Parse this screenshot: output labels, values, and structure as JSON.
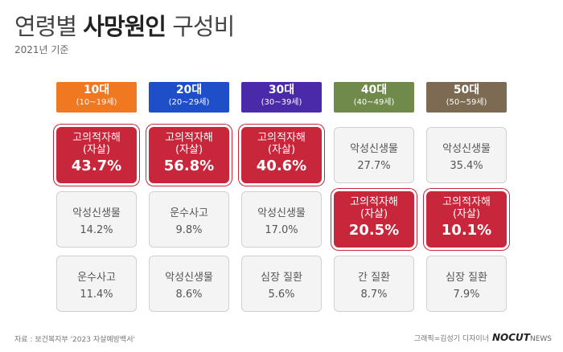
{
  "title_prefix": "연령별 ",
  "title_bold": "사망원인",
  "title_suffix": " 구성비",
  "subtitle": "2021년 기준",
  "source": "자료 : 보건복지부 '2023 자살예방백서'",
  "credit": "그래픽=김성기 디자이너",
  "logo": "NOCUT",
  "logo_suffix": "NEWS",
  "chart_data": {
    "type": "table",
    "columns": [
      {
        "age": "10대",
        "range": "(10~19세)",
        "color": "#f07820",
        "causes": [
          {
            "name": "고의적자해",
            "sub": "(자살)",
            "pct": "43.7%",
            "value": 43.7,
            "highlight": true
          },
          {
            "name": "악성신생물",
            "pct": "14.2%",
            "value": 14.2,
            "highlight": false
          },
          {
            "name": "운수사고",
            "pct": "11.4%",
            "value": 11.4,
            "highlight": false
          }
        ]
      },
      {
        "age": "20대",
        "range": "(20~29세)",
        "color": "#1f4fc8",
        "causes": [
          {
            "name": "고의적자해",
            "sub": "(자살)",
            "pct": "56.8%",
            "value": 56.8,
            "highlight": true
          },
          {
            "name": "운수사고",
            "pct": "9.8%",
            "value": 9.8,
            "highlight": false
          },
          {
            "name": "악성신생물",
            "pct": "8.6%",
            "value": 8.6,
            "highlight": false
          }
        ]
      },
      {
        "age": "30대",
        "range": "(30~39세)",
        "color": "#4a2aa8",
        "causes": [
          {
            "name": "고의적자해",
            "sub": "(자살)",
            "pct": "40.6%",
            "value": 40.6,
            "highlight": true
          },
          {
            "name": "악성신생물",
            "pct": "17.0%",
            "value": 17.0,
            "highlight": false
          },
          {
            "name": "심장 질환",
            "pct": "5.6%",
            "value": 5.6,
            "highlight": false
          }
        ]
      },
      {
        "age": "40대",
        "range": "(40~49세)",
        "color": "#6f8a4a",
        "causes": [
          {
            "name": "악성신생물",
            "pct": "27.7%",
            "value": 27.7,
            "highlight": false
          },
          {
            "name": "고의적자해",
            "sub": "(자살)",
            "pct": "20.5%",
            "value": 20.5,
            "highlight": true
          },
          {
            "name": "간 질환",
            "pct": "8.7%",
            "value": 8.7,
            "highlight": false
          }
        ]
      },
      {
        "age": "50대",
        "range": "(50~59세)",
        "color": "#7d6a52",
        "causes": [
          {
            "name": "악성신생물",
            "pct": "35.4%",
            "value": 35.4,
            "highlight": false
          },
          {
            "name": "고의적자해",
            "sub": "(자살)",
            "pct": "10.1%",
            "value": 10.1,
            "highlight": true
          },
          {
            "name": "심장 질환",
            "pct": "7.9%",
            "value": 7.9,
            "highlight": false
          }
        ]
      }
    ]
  }
}
